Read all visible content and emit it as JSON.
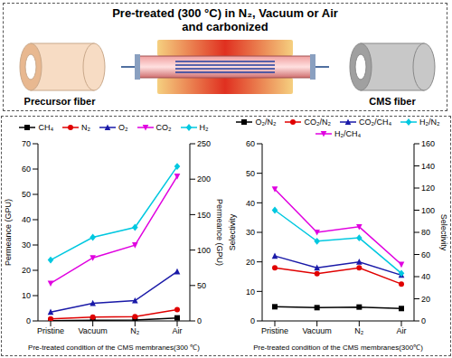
{
  "header": {
    "title": [
      "Pre-treated (300 °C) in N₂, Vacuum or Air",
      "and carbonized"
    ],
    "labels": [
      "Precursor fiber",
      "CMS fiber"
    ]
  },
  "chart_data": [
    {
      "type": "line",
      "categories": [
        "Pristine",
        "Vacuum",
        "N₂",
        "Air"
      ],
      "x_label": "Pre-treated condition of the CMS membranes(300 ℃)",
      "y_label": "Permeance (GPU)",
      "y2_label": "Permeance (GPU)",
      "ylim": [
        0,
        70
      ],
      "yticks": [
        0,
        10,
        20,
        30,
        40,
        50,
        60,
        70
      ],
      "y2lim": [
        0,
        250
      ],
      "y2ticks": [
        0,
        50,
        100,
        150,
        200,
        250
      ],
      "series": [
        {
          "name": "CH₄",
          "color": "#000000",
          "marker": "square",
          "values": [
            0.1,
            0.3,
            0.4,
            1.2
          ]
        },
        {
          "name": "N₂",
          "color": "#e00000",
          "marker": "circle",
          "values": [
            0.8,
            1.5,
            1.7,
            4.5
          ]
        },
        {
          "name": "O₂",
          "color": "#1a1aa8",
          "marker": "triangle",
          "values": [
            3.5,
            7,
            8,
            19.5
          ]
        },
        {
          "name": "CO₂",
          "color": "#e000e0",
          "marker": "triangle-down",
          "axis": "y2",
          "values": [
            53,
            89,
            107,
            204
          ]
        },
        {
          "name": "H₂",
          "color": "#00c8e0",
          "marker": "diamond",
          "axis": "y2",
          "values": [
            86,
            118,
            132,
            218
          ]
        }
      ]
    },
    {
      "type": "line",
      "categories": [
        "Pristine",
        "Vacuum",
        "N₂",
        "Air"
      ],
      "x_label": "Pre-treated condition of the CMS membranes(300℃)",
      "y_label": "Selectivity",
      "y2_label": "Selectivity",
      "ylim": [
        0,
        60
      ],
      "yticks": [
        0,
        10,
        20,
        30,
        40,
        50,
        60
      ],
      "y2lim": [
        0,
        160
      ],
      "y2ticks": [
        0,
        20,
        40,
        60,
        80,
        100,
        120,
        140,
        160
      ],
      "series": [
        {
          "name": "O₂/N₂",
          "color": "#000000",
          "marker": "square",
          "values": [
            4.8,
            4.5,
            4.7,
            4.2
          ]
        },
        {
          "name": "CO₂/N₂",
          "color": "#e00000",
          "marker": "circle",
          "values": [
            18,
            16,
            18,
            12.5
          ]
        },
        {
          "name": "CO₂/CH₄",
          "color": "#1a1aa8",
          "marker": "triangle",
          "values": [
            22,
            18,
            20,
            15.5
          ]
        },
        {
          "name": "H₂/N₂",
          "color": "#00c8e0",
          "marker": "diamond",
          "axis": "y2",
          "values": [
            100,
            72,
            75,
            43
          ]
        },
        {
          "name": "H₂/CH₄",
          "color": "#e000e0",
          "marker": "triangle-down",
          "axis": "y2",
          "values": [
            119,
            80,
            85,
            51
          ]
        }
      ]
    }
  ]
}
